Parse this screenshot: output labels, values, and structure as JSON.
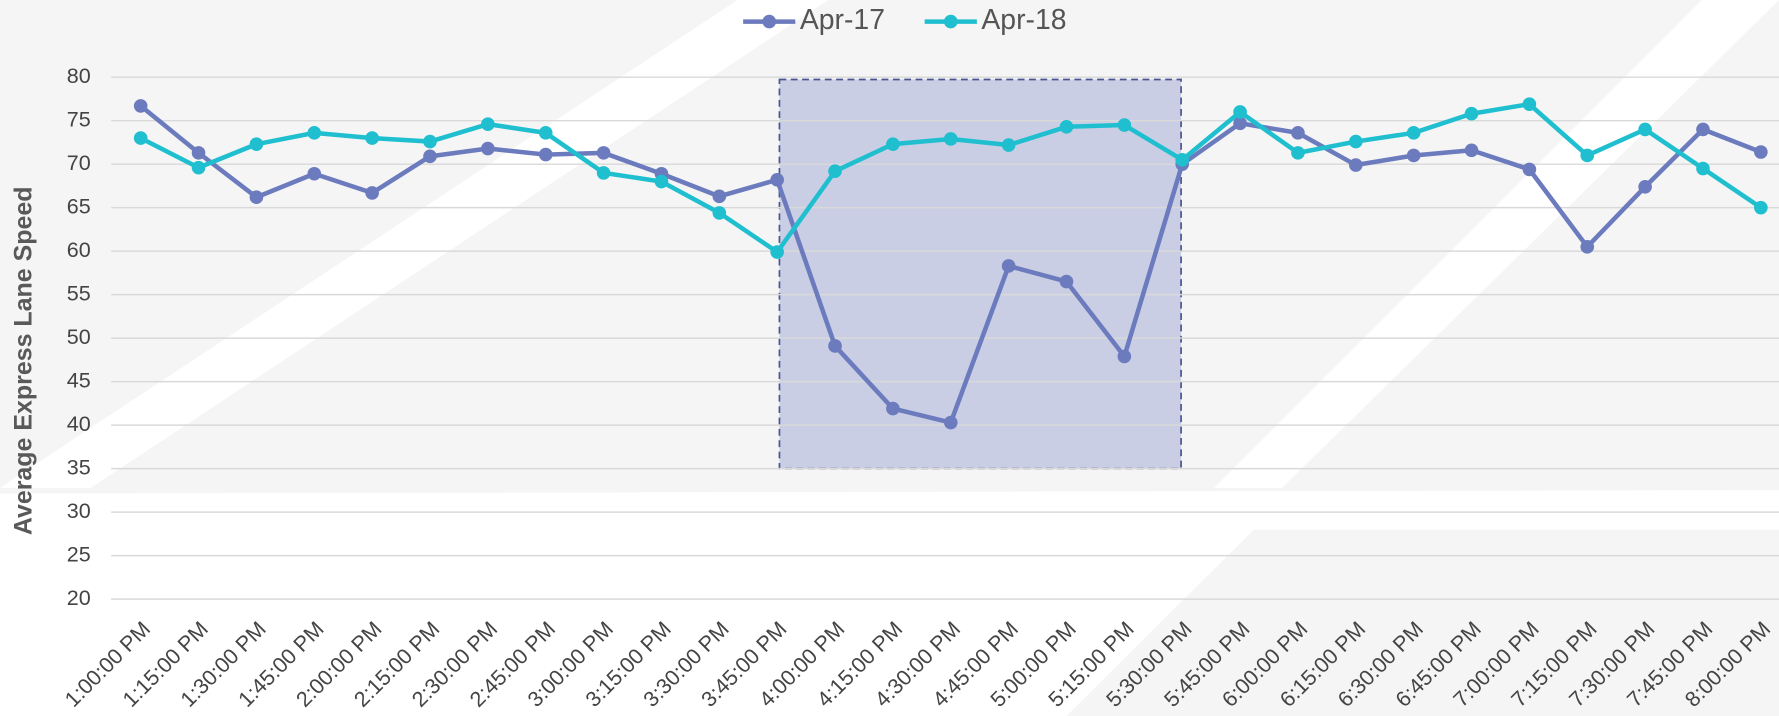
{
  "chart_data": {
    "type": "line",
    "y_label": "Average Express Lane Speed",
    "categories": [
      "1:00:00 PM",
      "1:15:00 PM",
      "1:30:00 PM",
      "1:45:00 PM",
      "2:00:00 PM",
      "2:15:00 PM",
      "2:30:00 PM",
      "2:45:00 PM",
      "3:00:00 PM",
      "3:15:00 PM",
      "3:30:00 PM",
      "3:45:00 PM",
      "4:00:00 PM",
      "4:15:00 PM",
      "4:30:00 PM",
      "4:45:00 PM",
      "5:00:00 PM",
      "5:15:00 PM",
      "5:30:00 PM",
      "5:45:00 PM",
      "6:00:00 PM",
      "6:15:00 PM",
      "6:30:00 PM",
      "6:45:00 PM",
      "7:00:00 PM",
      "7:15:00 PM",
      "7:30:00 PM",
      "7:45:00 PM",
      "8:00:00 PM"
    ],
    "series": [
      {
        "name": "Apr-17",
        "color": "#6b7bbd",
        "values": [
          76.7,
          71.3,
          66.2,
          68.9,
          66.7,
          70.9,
          71.8,
          71.1,
          71.3,
          68.9,
          66.3,
          68.2,
          49.1,
          41.9,
          40.3,
          58.3,
          56.5,
          47.9,
          70.0,
          74.7,
          73.6,
          69.9,
          71.0,
          71.6,
          69.4,
          60.5,
          67.4,
          74.0,
          71.4
        ]
      },
      {
        "name": "Apr-18",
        "color": "#1fbfcf",
        "values": [
          73.0,
          69.6,
          72.3,
          73.6,
          73.0,
          72.6,
          74.6,
          73.6,
          69.0,
          68.0,
          64.4,
          59.9,
          69.2,
          72.3,
          72.9,
          72.2,
          74.3,
          74.5,
          70.5,
          76.0,
          71.3,
          72.6,
          73.6,
          75.8,
          76.9,
          71.0,
          74.0,
          69.5,
          65.0
        ]
      }
    ],
    "ylim": [
      20,
      80
    ],
    "yticks": [
      20,
      25,
      30,
      35,
      40,
      45,
      50,
      55,
      60,
      65,
      70,
      75,
      80
    ],
    "grid": true,
    "legend": "top"
  }
}
